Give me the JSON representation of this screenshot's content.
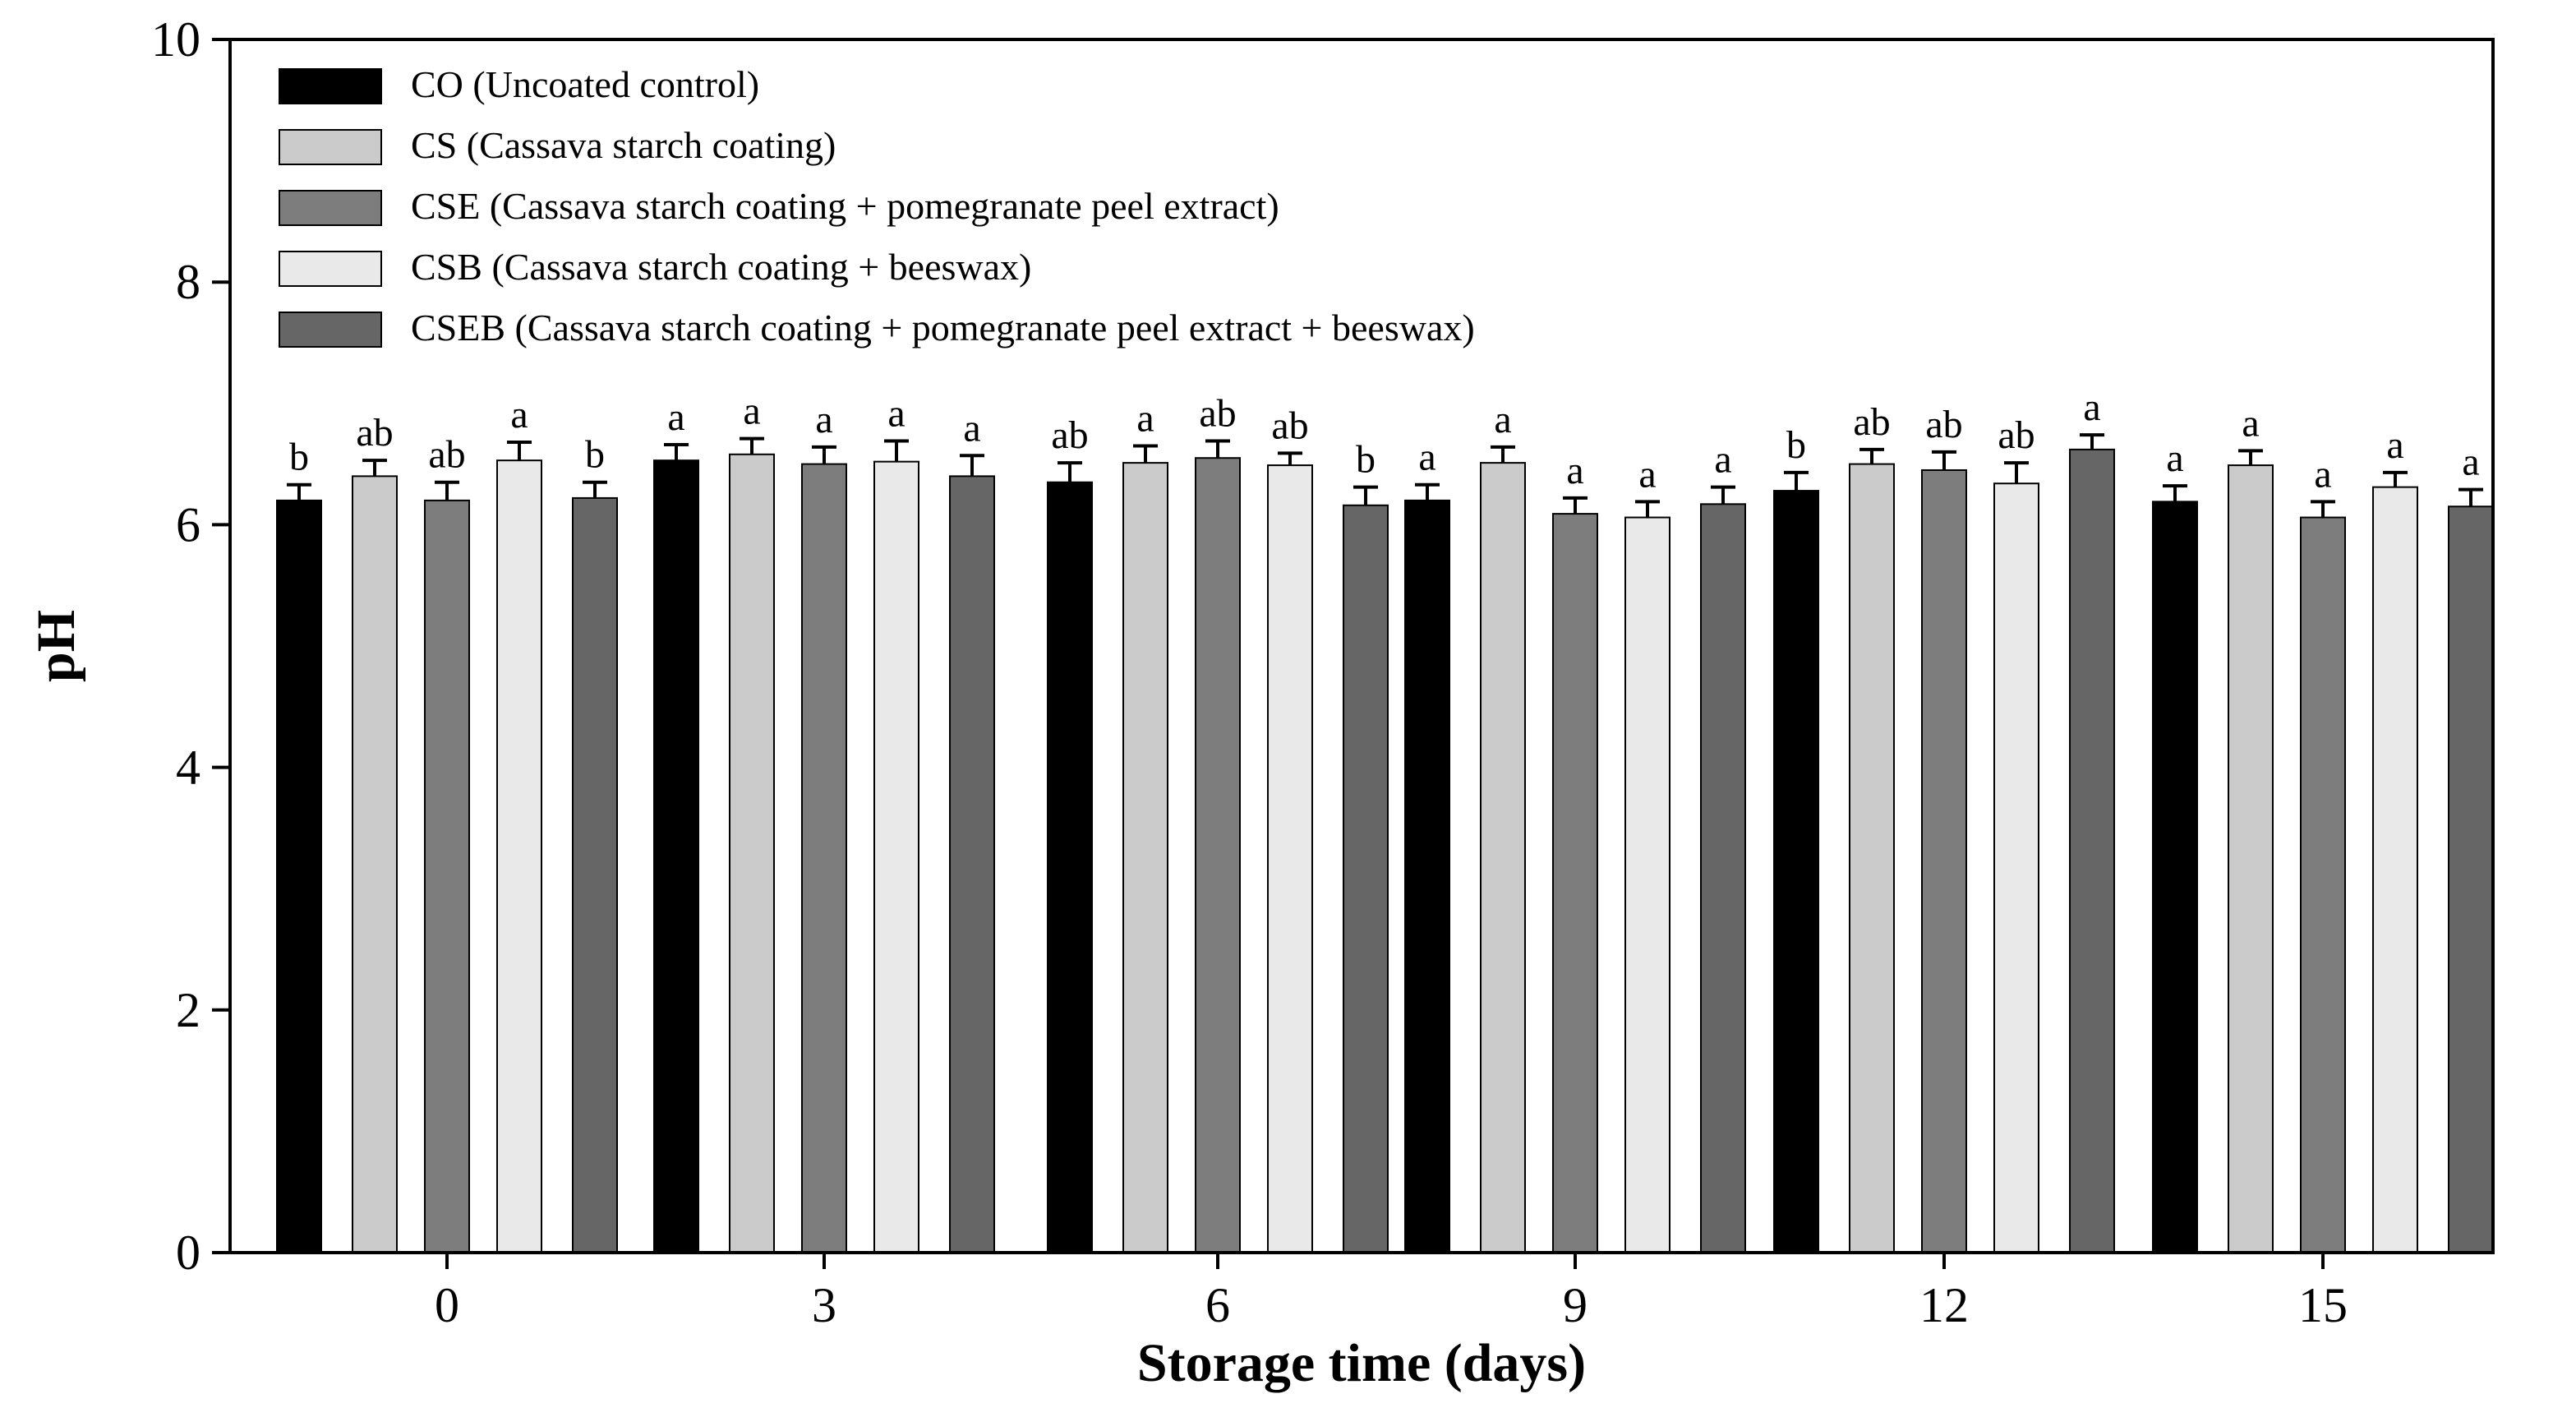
{
  "chart_data": {
    "type": "bar",
    "xlabel": "Storage time (days)",
    "ylabel": "pH",
    "ylim": [
      0,
      10
    ],
    "yticks": [
      "0",
      "2",
      "4",
      "6",
      "8",
      "10"
    ],
    "categories": [
      "0",
      "3",
      "6",
      "9",
      "12",
      "15"
    ],
    "legend_position": "top-left",
    "series": [
      {
        "name": "CO (Uncoated control)",
        "color": "#000000",
        "values": [
          6.2,
          6.53,
          6.35,
          6.2,
          6.28,
          6.19
        ],
        "errors": [
          0.13,
          0.13,
          0.16,
          0.13,
          0.15,
          0.13
        ],
        "labels": [
          "b",
          "a",
          "ab",
          "a",
          "b",
          "a"
        ]
      },
      {
        "name": "CS (Cassava starch coating)",
        "color": "#cbcbcb",
        "values": [
          6.4,
          6.58,
          6.51,
          6.51,
          6.5,
          6.49
        ],
        "errors": [
          0.13,
          0.13,
          0.14,
          0.13,
          0.12,
          0.12
        ],
        "labels": [
          "ab",
          "a",
          "a",
          "a",
          "ab",
          "a"
        ]
      },
      {
        "name": "CSE (Cassava starch coating + pomegranate peel extract)",
        "color": "#7d7d7d",
        "values": [
          6.2,
          6.5,
          6.55,
          6.09,
          6.45,
          6.06
        ],
        "errors": [
          0.15,
          0.14,
          0.14,
          0.13,
          0.15,
          0.13
        ],
        "labels": [
          "ab",
          "a",
          "ab",
          "a",
          "ab",
          "a"
        ]
      },
      {
        "name": "CSB (Cassava starch coating + beeswax)",
        "color": "#e9e9e9",
        "values": [
          6.53,
          6.52,
          6.49,
          6.06,
          6.34,
          6.31
        ],
        "errors": [
          0.15,
          0.17,
          0.1,
          0.13,
          0.17,
          0.12
        ],
        "labels": [
          "a",
          "a",
          "ab",
          "a",
          "ab",
          "a"
        ]
      },
      {
        "name": "CSEB (Cassava starch coating + pomegranate peel extract + beeswax)",
        "color": "#666666",
        "values": [
          6.22,
          6.4,
          6.16,
          6.17,
          6.62,
          6.15
        ],
        "errors": [
          0.13,
          0.17,
          0.15,
          0.14,
          0.12,
          0.14
        ],
        "labels": [
          "b",
          "a",
          "b",
          "a",
          "a",
          "a"
        ]
      }
    ]
  }
}
